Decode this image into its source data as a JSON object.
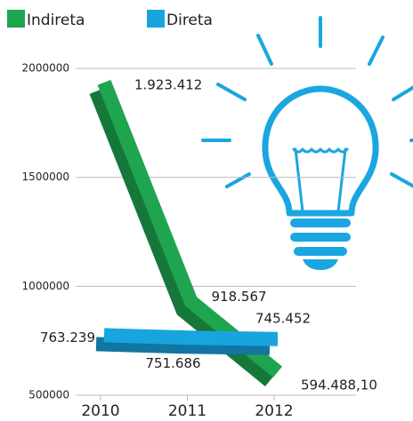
{
  "chart_data": {
    "type": "line",
    "categories": [
      "2010",
      "2011",
      "2012"
    ],
    "series": [
      {
        "name": "Indireta",
        "color": "#1fa550",
        "values": [
          1923412,
          918567,
          594488.1
        ],
        "value_labels": [
          "1.923.412",
          "918.567",
          "594.488,10"
        ]
      },
      {
        "name": "Direta",
        "color": "#18a4df",
        "values": [
          763239,
          751686,
          745452
        ],
        "value_labels": [
          "763.239",
          "751.686",
          "745.452"
        ]
      }
    ],
    "ylim": [
      500000,
      2000000
    ],
    "yticks": [
      500000,
      1000000,
      1500000,
      2000000
    ],
    "grid": true
  }
}
